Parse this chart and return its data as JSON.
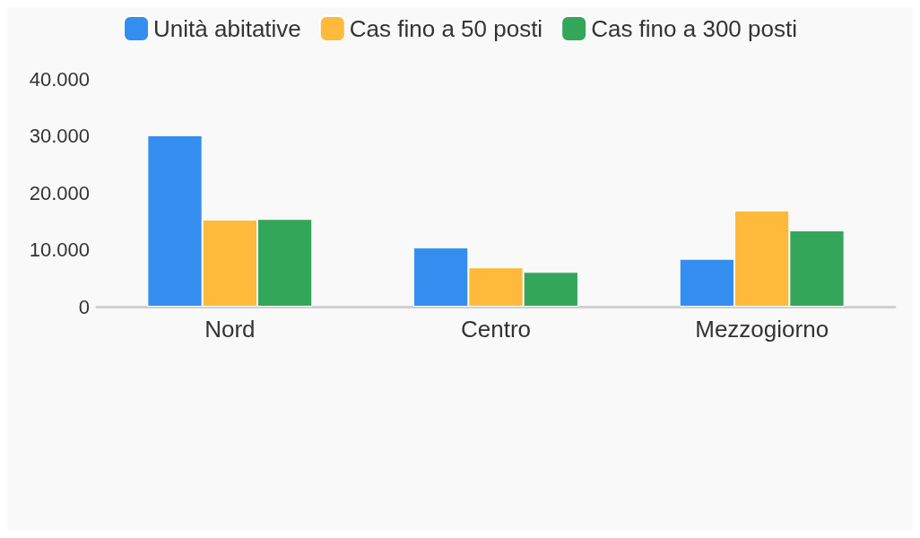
{
  "chart_data": {
    "type": "bar",
    "categories": [
      "Nord",
      "Centro",
      "Mezzogiorno"
    ],
    "series": [
      {
        "name": "Unità abitative",
        "color": "#348ef0",
        "values": [
          30100,
          10400,
          8400
        ]
      },
      {
        "name": "Cas fino a 50 posti",
        "color": "#ffb93b",
        "values": [
          15300,
          6900,
          16900
        ]
      },
      {
        "name": "Cas fino a 300 posti",
        "color": "#33a65a",
        "values": [
          15400,
          6100,
          13400
        ]
      }
    ],
    "ylim": [
      0,
      40000
    ],
    "yticks": [
      0,
      {
        "value": 10000,
        "label": "10.000"
      },
      {
        "value": 20000,
        "label": "20.000"
      },
      {
        "value": 30000,
        "label": "30.000"
      },
      {
        "value": 40000,
        "label": "40.000"
      }
    ],
    "grid": false,
    "legend": "top"
  }
}
